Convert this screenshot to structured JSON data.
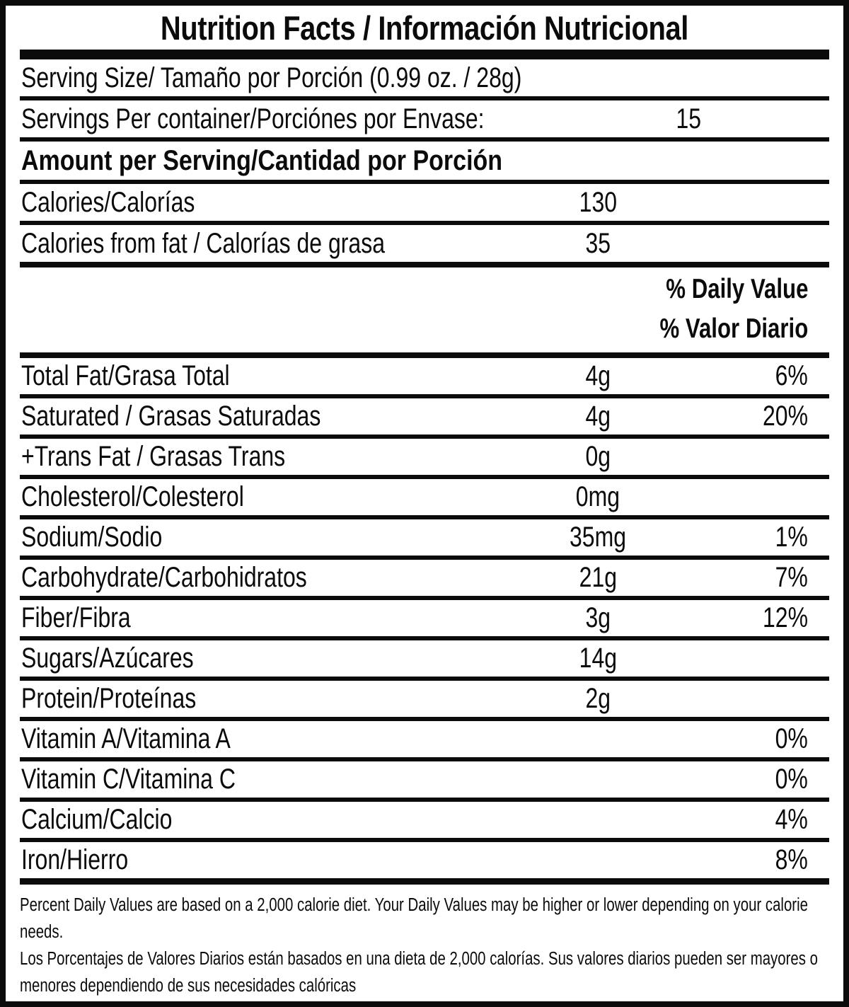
{
  "label": {
    "title": "Nutrition Facts / Información Nutricional",
    "serving_size": "Serving Size/ Tamaño por Porción  (0.99 oz. / 28g)",
    "servings_per_container": {
      "name": "Servings Per container/Porciónes por Envase:",
      "value": "15"
    },
    "amount_header": "Amount per Serving/Cantidad por Porción",
    "calories_rows": [
      {
        "name": "Calories/Calorías",
        "amount": "130"
      },
      {
        "name": "Calories from fat / Calorías de grasa",
        "amount": "35"
      }
    ],
    "daily_value_heading": {
      "en": "% Daily Value",
      "es": "% Valor Diario"
    },
    "nutrients": [
      {
        "name": "Total Fat/Grasa Total",
        "amount": "4g",
        "dv": "6%"
      },
      {
        "name": "Saturated / Grasas Saturadas",
        "amount": "4g",
        "dv": "20%"
      },
      {
        "name": "+Trans Fat / Grasas Trans",
        "amount": "0g",
        "dv": ""
      },
      {
        "name": "Cholesterol/Colesterol",
        "amount": "0mg",
        "dv": ""
      },
      {
        "name": "Sodium/Sodio",
        "amount": "35mg",
        "dv": "1%"
      },
      {
        "name": "Carbohydrate/Carbohidratos",
        "amount": "21g",
        "dv": "7%"
      },
      {
        "name": "Fiber/Fibra",
        "amount": "3g",
        "dv": "12%"
      },
      {
        "name": "Sugars/Azúcares",
        "amount": "14g",
        "dv": ""
      },
      {
        "name": "Protein/Proteínas",
        "amount": "2g",
        "dv": ""
      },
      {
        "name": "Vitamin A/Vitamina A",
        "amount": "",
        "dv": "0%"
      },
      {
        "name": "Vitamin C/Vitamina C",
        "amount": "",
        "dv": "0%"
      },
      {
        "name": "Calcium/Calcio",
        "amount": "",
        "dv": "4%"
      },
      {
        "name": "Iron/Hierro",
        "amount": "",
        "dv": "8%"
      }
    ],
    "footnotes": {
      "en": "Percent Daily Values are based on a 2,000 calorie diet. Your Daily Values may be higher or lower depending on your calorie needs.",
      "es": "Los Porcentajes de Valores Diarios están basados en una dieta de 2,000 calorías. Sus valores diarios pueden ser mayores o menores dependiendo de sus necesidades calóricas"
    },
    "colors": {
      "ink": "#0b0b0b",
      "background": "#ffffff"
    }
  }
}
